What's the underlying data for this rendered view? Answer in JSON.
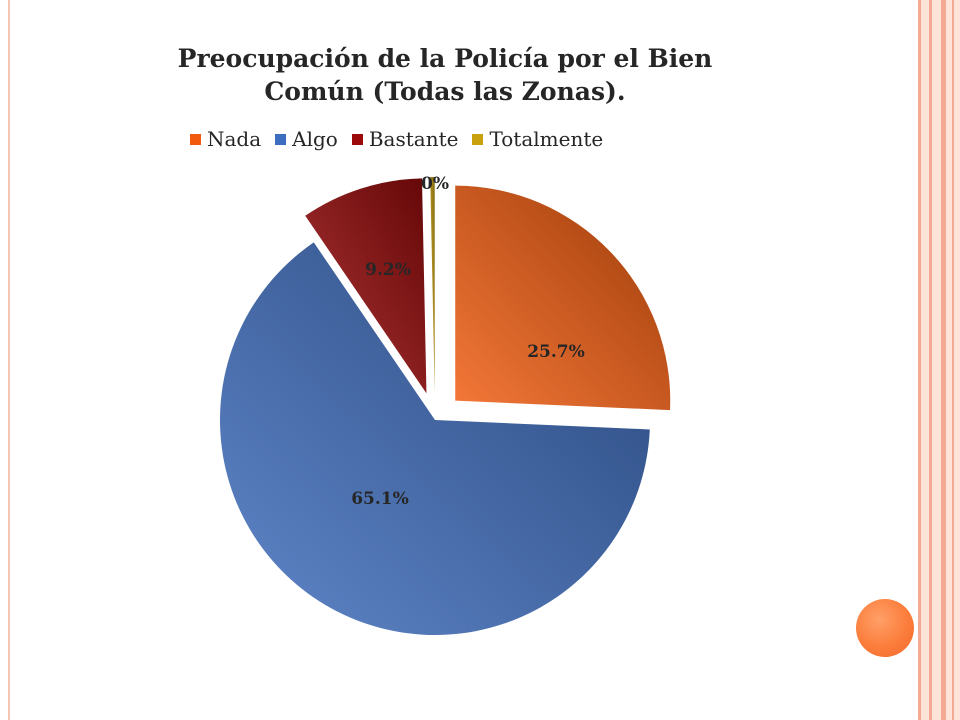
{
  "chart_data": {
    "type": "pie",
    "title": "Preocupación de la Policía por el Bien Común (Todas las Zonas).",
    "title_lines": [
      "Preocupación de la Policía por el Bien",
      "Común (Todas las Zonas)."
    ],
    "legend_position": "top",
    "categories": [
      "Nada",
      "Algo",
      "Bastante",
      "Totalmente"
    ],
    "values": [
      25.7,
      65.1,
      9.2,
      0
    ],
    "data_labels": [
      "25.7%",
      "65.1%",
      "9.2%",
      "0%"
    ],
    "colors": [
      "#f25a0d",
      "#3d6dbe",
      "#9c0a0a",
      "#c9a10f"
    ],
    "exploded": true
  },
  "theme": {
    "accent": "#fb7d3b",
    "stripe": "#f4a995",
    "band": "#fde3d8"
  }
}
